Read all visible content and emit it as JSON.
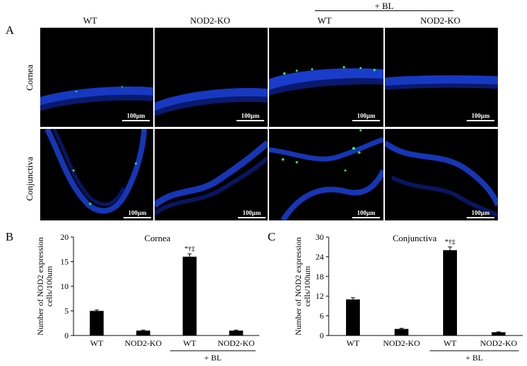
{
  "panel_a": {
    "letter": "A",
    "bl_group_label": "+ BL",
    "columns": [
      "WT",
      "NOD2-KO",
      "WT",
      "NOD2-KO"
    ],
    "rows": [
      "Cornea",
      "Conjunctiva"
    ],
    "scale_label": "100µm"
  },
  "panel_b": {
    "letter": "B"
  },
  "panel_c": {
    "letter": "C"
  },
  "chart_data": [
    {
      "type": "bar",
      "title": "Cornea",
      "ylabel": "Number of NOD2 expression cells/100um",
      "categories": [
        "WT",
        "NOD2-KO",
        "WT",
        "NOD2-KO"
      ],
      "values": [
        5,
        1,
        16,
        1
      ],
      "errors": [
        0.2,
        0.1,
        0.6,
        0.1
      ],
      "significance": [
        "",
        "",
        "*†‡",
        ""
      ],
      "group_label": "+ BL",
      "ylim": [
        0,
        20
      ],
      "yticks": [
        0,
        5,
        10,
        15,
        20
      ],
      "bar_color": "#000000"
    },
    {
      "type": "bar",
      "title": "Conjunctiva",
      "ylabel": "Number of NOD2 expression cells/100um",
      "categories": [
        "WT",
        "NOD2-KO",
        "WT",
        "NOD2-KO"
      ],
      "values": [
        11,
        2,
        26,
        1
      ],
      "errors": [
        0.5,
        0.2,
        1.0,
        0.1
      ],
      "significance": [
        "",
        "",
        "*†‡",
        ""
      ],
      "group_label": "+ BL",
      "ylim": [
        0,
        30
      ],
      "yticks": [
        0,
        6,
        12,
        18,
        24,
        30
      ],
      "bar_color": "#000000"
    }
  ]
}
